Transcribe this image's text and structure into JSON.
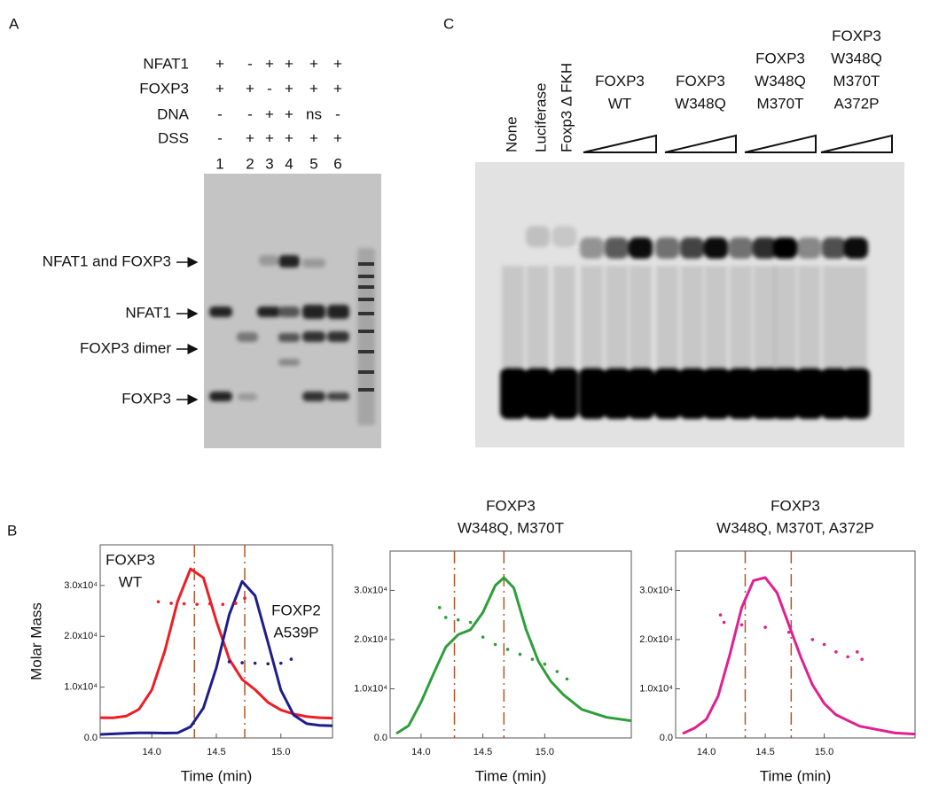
{
  "panel_a": {
    "label": "A",
    "rows": [
      {
        "name": "NFAT1",
        "marks": [
          "+",
          "-",
          "+",
          "+",
          "+",
          "+"
        ]
      },
      {
        "name": "FOXP3",
        "marks": [
          "+",
          "+",
          "-",
          "+",
          "+",
          "+"
        ]
      },
      {
        "name": "DNA",
        "marks": [
          "-",
          "-",
          "+",
          "+",
          "ns",
          "-"
        ]
      },
      {
        "name": "DSS",
        "marks": [
          "-",
          "+",
          "+",
          "+",
          "+",
          "+"
        ]
      }
    ],
    "lanes": [
      "1",
      "2",
      "3",
      "4",
      "5",
      "6"
    ],
    "bands": [
      "NFAT1 and FOXP3",
      "NFAT1",
      "FOXP3 dimer",
      "FOXP3"
    ]
  },
  "panel_c": {
    "label": "C",
    "controls": [
      "None",
      "Luciferase",
      "Foxp3 Δ FKH"
    ],
    "groups": [
      [
        "FOXP3",
        "WT"
      ],
      [
        "FOXP3",
        "W348Q"
      ],
      [
        "FOXP3",
        "W348Q",
        "M370T"
      ],
      [
        "FOXP3",
        "W348Q",
        "M370T",
        "A372P"
      ]
    ]
  },
  "panel_b": {
    "label": "B"
  },
  "chart_data": [
    {
      "type": "line",
      "y_label": "Molar Mass",
      "x_label": "Time (min)",
      "xlim": [
        13.6,
        15.4
      ],
      "ylim": [
        0,
        38000
      ],
      "xticks": [
        {
          "value": 14,
          "label": "14.0"
        },
        {
          "value": 14.5,
          "label": "14.5"
        },
        {
          "value": 15,
          "label": "15.0"
        }
      ],
      "yticks": [
        {
          "value": 0,
          "label": "0.0"
        },
        {
          "value": 10000,
          "label": "1.0x10⁴"
        },
        {
          "value": 20000,
          "label": "2.0x10⁴"
        },
        {
          "value": 30000,
          "label": "3.0x10⁴"
        }
      ],
      "vlines": [
        14.33,
        14.72
      ],
      "vline_color": "#b5562a",
      "annotations": [
        {
          "lines": [
            "FOXP3",
            "WT"
          ],
          "color": "#ee1c25"
        },
        {
          "lines": [
            "FOXP2",
            "A539P"
          ],
          "color": "#2b4fa0"
        }
      ],
      "series": [
        {
          "style": "line",
          "color": "#ee1c25",
          "x": [
            13.6,
            13.7,
            13.8,
            13.9,
            14.0,
            14.1,
            14.2,
            14.3,
            14.4,
            14.5,
            14.6,
            14.7,
            14.8,
            14.9,
            15.0,
            15.1,
            15.2,
            15.3,
            15.4
          ],
          "values": [
            4000,
            3970,
            4290,
            5630,
            9440,
            17070,
            26880,
            33280,
            31520,
            23000,
            15500,
            11500,
            9500,
            7000,
            5500,
            4700,
            4200,
            4000,
            3900
          ]
        },
        {
          "style": "line",
          "color": "#1d1d8c",
          "x": [
            13.6,
            13.7,
            13.8,
            13.9,
            14.0,
            14.1,
            14.2,
            14.3,
            14.4,
            14.5,
            14.6,
            14.7,
            14.8,
            14.9,
            15.0,
            15.1,
            15.2,
            15.3,
            15.4
          ],
          "values": [
            700,
            800,
            900,
            1000,
            1000,
            950,
            1000,
            2200,
            5900,
            13800,
            24300,
            30800,
            28000,
            18800,
            9400,
            4500,
            2800,
            2500,
            2400
          ]
        },
        {
          "style": "dots",
          "color": "#ee1c25",
          "x": [
            14.05,
            14.15,
            14.25,
            14.35,
            14.45,
            14.55,
            14.65,
            14.72
          ],
          "values": [
            26800,
            26500,
            26400,
            26300,
            26400,
            26300,
            26500,
            27500
          ]
        },
        {
          "style": "dots",
          "color": "#1d1d8c",
          "x": [
            14.6,
            14.7,
            14.8,
            14.9,
            15.0,
            15.08
          ],
          "values": [
            15000,
            14800,
            14700,
            14600,
            14700,
            15500
          ]
        }
      ]
    },
    {
      "type": "line",
      "title": [
        "FOXP3",
        "W348Q, M370T"
      ],
      "title_color": "#2e9e3a",
      "x_label": "Time (min)",
      "xlim": [
        13.75,
        15.7
      ],
      "ylim": [
        0,
        38000
      ],
      "xticks": [
        {
          "value": 14,
          "label": "14.0"
        },
        {
          "value": 14.5,
          "label": "14.5"
        },
        {
          "value": 15,
          "label": "15.0"
        }
      ],
      "yticks": [
        {
          "value": 0,
          "label": "0.0"
        },
        {
          "value": 10000,
          "label": "1.0x10⁴"
        },
        {
          "value": 20000,
          "label": "2.0x10⁴"
        },
        {
          "value": 30000,
          "label": "3.0x10⁴"
        }
      ],
      "vlines": [
        14.27,
        14.67
      ],
      "vline_color": "#b5562a",
      "series": [
        {
          "style": "line",
          "color": "#2e9e3a",
          "x": [
            13.8,
            13.9,
            14.0,
            14.1,
            14.2,
            14.3,
            14.4,
            14.5,
            14.6,
            14.67,
            14.75,
            14.85,
            14.95,
            15.05,
            15.15,
            15.3,
            15.5,
            15.7
          ],
          "values": [
            900,
            2500,
            7300,
            13000,
            18500,
            21000,
            22000,
            25500,
            31000,
            32600,
            30500,
            22000,
            15500,
            11500,
            8800,
            5800,
            4200,
            3500
          ]
        },
        {
          "style": "dots",
          "color": "#2e9e3a",
          "x": [
            14.15,
            14.2,
            14.3,
            14.4,
            14.5,
            14.6,
            14.7,
            14.8,
            14.9,
            15.0,
            15.1,
            15.18
          ],
          "values": [
            26500,
            24500,
            24000,
            23500,
            20500,
            19000,
            18000,
            17000,
            16000,
            15000,
            13500,
            12000
          ]
        }
      ]
    },
    {
      "type": "line",
      "title": [
        "FOXP3",
        "W348Q, M370T, A372P"
      ],
      "title_color": "#e0208f",
      "x_label": "Time (min)",
      "xlim": [
        13.74,
        15.77
      ],
      "ylim": [
        0,
        38000
      ],
      "xticks": [
        {
          "value": 14,
          "label": "14.0"
        },
        {
          "value": 14.5,
          "label": "14.5"
        },
        {
          "value": 15,
          "label": "15.0"
        }
      ],
      "yticks": [
        {
          "value": 0,
          "label": "0.0"
        },
        {
          "value": 10000,
          "label": "1.0x10⁴"
        },
        {
          "value": 20000,
          "label": "2.0x10⁴"
        },
        {
          "value": 30000,
          "label": "3.0x10⁴"
        }
      ],
      "vlines": [
        14.33,
        14.72
      ],
      "vline_color": "#b5562a",
      "series": [
        {
          "style": "line",
          "color": "#e0208f",
          "x": [
            13.8,
            13.9,
            14.0,
            14.1,
            14.2,
            14.3,
            14.4,
            14.5,
            14.6,
            14.7,
            14.8,
            14.9,
            15.0,
            15.1,
            15.3,
            15.6,
            15.77
          ],
          "values": [
            900,
            2000,
            3800,
            8500,
            17000,
            26500,
            32000,
            32600,
            29500,
            23000,
            16500,
            10800,
            7000,
            4700,
            2400,
            1000,
            800
          ]
        },
        {
          "style": "dots",
          "color": "#e0208f",
          "x": [
            14.12,
            14.15,
            14.3,
            14.5,
            14.7,
            14.9,
            15.0,
            15.1,
            15.2,
            15.28,
            15.32
          ],
          "values": [
            25000,
            23500,
            23000,
            22500,
            21500,
            20000,
            19000,
            17500,
            16500,
            17500,
            16000
          ]
        }
      ]
    }
  ]
}
